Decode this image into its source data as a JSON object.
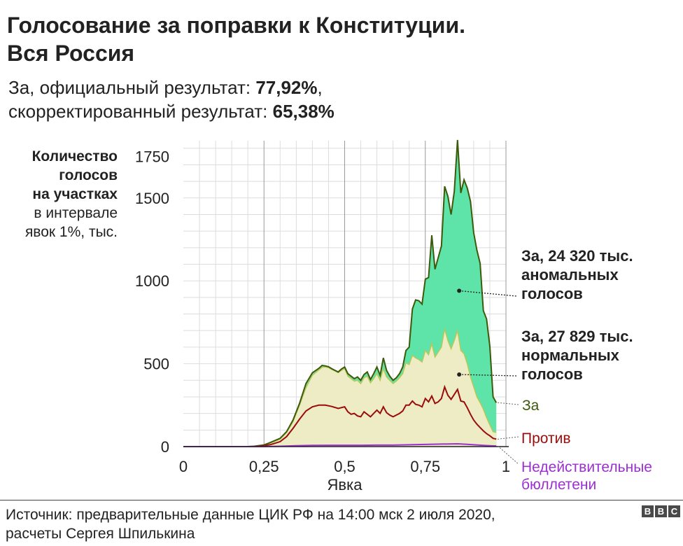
{
  "title": {
    "line1": "Голосование за поправки к Конституции.",
    "line2": "Вся Россия"
  },
  "subtitle": {
    "line1_prefix": "За, официальный результат: ",
    "official_value": "77,92%",
    "line1_suffix": ",",
    "line2_prefix": "скорректированный результат: ",
    "corrected_value": "65,38%"
  },
  "y_axis_label": {
    "bold": [
      "Количество",
      "голосов",
      "на участках"
    ],
    "normal": [
      "в интервале",
      "явок 1%, тыс."
    ]
  },
  "annotations": {
    "anomalous": [
      "За, 24 320 тыс.",
      "аномальных",
      "голосов"
    ],
    "normal": [
      "За, 27 829 тыс.",
      "нормальных",
      "голосов"
    ]
  },
  "legend": {
    "for": "За",
    "against": "Против",
    "invalid": [
      "Недействительные",
      "бюллетени"
    ]
  },
  "source": {
    "line1": "Источник: предварительные данные ЦИК РФ на 14:00 мск 2 июля 2020,",
    "line2": "расчеты Сергея Шпилькина"
  },
  "logo": [
    "B",
    "B",
    "C"
  ],
  "colors": {
    "anomalous_fill": "#5ee3a8",
    "normal_fill": "#eeecc4",
    "for_line": "#3c5a0a",
    "against_line": "#9a0c0c",
    "invalid_line": "#9b30d0",
    "grid_major": "#999999",
    "grid_minor": "#dddddd"
  },
  "chart_data": {
    "type": "area",
    "title": "Голосование за поправки к Конституции. Вся Россия",
    "xlabel": "Явка",
    "ylabel": "Количество голосов на участках в интервале явок 1%, тыс.",
    "xlim": [
      0,
      1
    ],
    "ylim": [
      0,
      1800
    ],
    "x_ticks": [
      0,
      0.25,
      0.5,
      0.75,
      1
    ],
    "x_tick_labels": [
      "0",
      "0,25",
      "0,5",
      "0,75",
      "1"
    ],
    "y_ticks": [
      0,
      500,
      1000,
      1500,
      1750
    ],
    "y_tick_labels": [
      "0",
      "500",
      "1000",
      "1500",
      "1750"
    ],
    "grid": true,
    "series": [
      {
        "name": "За",
        "points": [
          [
            0,
            0
          ],
          [
            0.2,
            0
          ],
          [
            0.22,
            2
          ],
          [
            0.25,
            10
          ],
          [
            0.27,
            25
          ],
          [
            0.3,
            50
          ],
          [
            0.32,
            90
          ],
          [
            0.34,
            160
          ],
          [
            0.36,
            260
          ],
          [
            0.38,
            380
          ],
          [
            0.4,
            445
          ],
          [
            0.42,
            472
          ],
          [
            0.43,
            490
          ],
          [
            0.44,
            487
          ],
          [
            0.45,
            482
          ],
          [
            0.46,
            470
          ],
          [
            0.47,
            460
          ],
          [
            0.48,
            450
          ],
          [
            0.49,
            468
          ],
          [
            0.5,
            480
          ],
          [
            0.51,
            440
          ],
          [
            0.52,
            425
          ],
          [
            0.53,
            410
          ],
          [
            0.54,
            420
          ],
          [
            0.55,
            400
          ],
          [
            0.56,
            435
          ],
          [
            0.57,
            450
          ],
          [
            0.58,
            405
          ],
          [
            0.59,
            440
          ],
          [
            0.6,
            480
          ],
          [
            0.61,
            430
          ],
          [
            0.62,
            535
          ],
          [
            0.63,
            460
          ],
          [
            0.64,
            425
          ],
          [
            0.65,
            400
          ],
          [
            0.66,
            415
          ],
          [
            0.67,
            440
          ],
          [
            0.68,
            480
          ],
          [
            0.69,
            580
          ],
          [
            0.7,
            600
          ],
          [
            0.71,
            830
          ],
          [
            0.72,
            885
          ],
          [
            0.73,
            880
          ],
          [
            0.74,
            860
          ],
          [
            0.75,
            1010
          ],
          [
            0.76,
            1020
          ],
          [
            0.77,
            1275
          ],
          [
            0.78,
            1070
          ],
          [
            0.79,
            1140
          ],
          [
            0.8,
            1210
          ],
          [
            0.81,
            1570
          ],
          [
            0.82,
            1510
          ],
          [
            0.83,
            1400
          ],
          [
            0.84,
            1540
          ],
          [
            0.85,
            1850
          ],
          [
            0.86,
            1530
          ],
          [
            0.87,
            1610
          ],
          [
            0.88,
            1560
          ],
          [
            0.89,
            1480
          ],
          [
            0.9,
            1290
          ],
          [
            0.91,
            1185
          ],
          [
            0.92,
            1105
          ],
          [
            0.93,
            820
          ],
          [
            0.94,
            770
          ],
          [
            0.95,
            605
          ],
          [
            0.96,
            300
          ],
          [
            0.97,
            265
          ]
        ]
      },
      {
        "name": "За, нормальные голоса",
        "points": [
          [
            0,
            0
          ],
          [
            0.2,
            0
          ],
          [
            0.22,
            1
          ],
          [
            0.25,
            8
          ],
          [
            0.27,
            22
          ],
          [
            0.3,
            45
          ],
          [
            0.32,
            85
          ],
          [
            0.34,
            150
          ],
          [
            0.36,
            250
          ],
          [
            0.38,
            355
          ],
          [
            0.4,
            430
          ],
          [
            0.42,
            462
          ],
          [
            0.43,
            478
          ],
          [
            0.44,
            480
          ],
          [
            0.45,
            476
          ],
          [
            0.46,
            466
          ],
          [
            0.47,
            456
          ],
          [
            0.48,
            446
          ],
          [
            0.49,
            460
          ],
          [
            0.5,
            470
          ],
          [
            0.51,
            425
          ],
          [
            0.52,
            410
          ],
          [
            0.53,
            395
          ],
          [
            0.54,
            400
          ],
          [
            0.55,
            380
          ],
          [
            0.56,
            415
          ],
          [
            0.57,
            425
          ],
          [
            0.58,
            385
          ],
          [
            0.59,
            410
          ],
          [
            0.6,
            440
          ],
          [
            0.61,
            400
          ],
          [
            0.62,
            470
          ],
          [
            0.63,
            420
          ],
          [
            0.64,
            400
          ],
          [
            0.65,
            380
          ],
          [
            0.66,
            395
          ],
          [
            0.67,
            415
          ],
          [
            0.68,
            440
          ],
          [
            0.69,
            505
          ],
          [
            0.7,
            495
          ],
          [
            0.71,
            550
          ],
          [
            0.72,
            535
          ],
          [
            0.73,
            525
          ],
          [
            0.74,
            510
          ],
          [
            0.75,
            580
          ],
          [
            0.76,
            555
          ],
          [
            0.77,
            620
          ],
          [
            0.78,
            540
          ],
          [
            0.79,
            570
          ],
          [
            0.8,
            600
          ],
          [
            0.81,
            710
          ],
          [
            0.82,
            640
          ],
          [
            0.83,
            590
          ],
          [
            0.84,
            640
          ],
          [
            0.85,
            700
          ],
          [
            0.86,
            580
          ],
          [
            0.87,
            560
          ],
          [
            0.88,
            500
          ],
          [
            0.89,
            420
          ],
          [
            0.9,
            360
          ],
          [
            0.91,
            300
          ],
          [
            0.92,
            265
          ],
          [
            0.93,
            225
          ],
          [
            0.94,
            175
          ],
          [
            0.95,
            130
          ],
          [
            0.96,
            90
          ],
          [
            0.97,
            85
          ]
        ]
      },
      {
        "name": "Против",
        "points": [
          [
            0,
            0
          ],
          [
            0.2,
            0
          ],
          [
            0.22,
            1
          ],
          [
            0.25,
            5
          ],
          [
            0.27,
            12
          ],
          [
            0.3,
            30
          ],
          [
            0.32,
            60
          ],
          [
            0.34,
            110
          ],
          [
            0.36,
            165
          ],
          [
            0.38,
            215
          ],
          [
            0.4,
            240
          ],
          [
            0.42,
            250
          ],
          [
            0.44,
            250
          ],
          [
            0.46,
            242
          ],
          [
            0.48,
            230
          ],
          [
            0.5,
            240
          ],
          [
            0.51,
            210
          ],
          [
            0.52,
            195
          ],
          [
            0.53,
            200
          ],
          [
            0.54,
            185
          ],
          [
            0.55,
            180
          ],
          [
            0.56,
            210
          ],
          [
            0.57,
            195
          ],
          [
            0.58,
            180
          ],
          [
            0.59,
            200
          ],
          [
            0.6,
            220
          ],
          [
            0.61,
            200
          ],
          [
            0.62,
            240
          ],
          [
            0.63,
            205
          ],
          [
            0.64,
            190
          ],
          [
            0.65,
            180
          ],
          [
            0.66,
            190
          ],
          [
            0.67,
            200
          ],
          [
            0.68,
            215
          ],
          [
            0.69,
            250
          ],
          [
            0.7,
            250
          ],
          [
            0.71,
            275
          ],
          [
            0.72,
            255
          ],
          [
            0.73,
            250
          ],
          [
            0.74,
            240
          ],
          [
            0.75,
            290
          ],
          [
            0.76,
            270
          ],
          [
            0.77,
            305
          ],
          [
            0.78,
            260
          ],
          [
            0.79,
            270
          ],
          [
            0.8,
            290
          ],
          [
            0.81,
            360
          ],
          [
            0.82,
            310
          ],
          [
            0.83,
            285
          ],
          [
            0.84,
            315
          ],
          [
            0.85,
            345
          ],
          [
            0.86,
            275
          ],
          [
            0.87,
            270
          ],
          [
            0.88,
            235
          ],
          [
            0.89,
            195
          ],
          [
            0.9,
            160
          ],
          [
            0.91,
            135
          ],
          [
            0.92,
            115
          ],
          [
            0.93,
            95
          ],
          [
            0.94,
            78
          ],
          [
            0.95,
            65
          ],
          [
            0.96,
            50
          ],
          [
            0.97,
            45
          ]
        ]
      },
      {
        "name": "Недействительные бюллетени",
        "points": [
          [
            0,
            0
          ],
          [
            0.25,
            0
          ],
          [
            0.3,
            2
          ],
          [
            0.35,
            5
          ],
          [
            0.4,
            7
          ],
          [
            0.45,
            8
          ],
          [
            0.5,
            8
          ],
          [
            0.55,
            8
          ],
          [
            0.6,
            9
          ],
          [
            0.65,
            9
          ],
          [
            0.7,
            11
          ],
          [
            0.75,
            13
          ],
          [
            0.8,
            15
          ],
          [
            0.85,
            17
          ],
          [
            0.88,
            14
          ],
          [
            0.9,
            11
          ],
          [
            0.93,
            7
          ],
          [
            0.95,
            5
          ],
          [
            0.97,
            4
          ]
        ]
      }
    ],
    "annotations": [
      {
        "label": "За, 24 320 тыс. аномальных голосов",
        "anchor": [
          0.855,
          940
        ]
      },
      {
        "label": "За, 27 829 тыс. нормальных голосов",
        "anchor": [
          0.855,
          435
        ]
      }
    ]
  }
}
